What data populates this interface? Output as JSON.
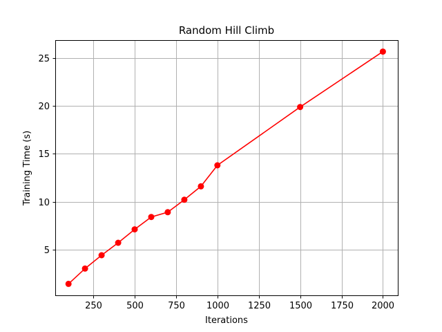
{
  "chart_data": {
    "type": "line",
    "title": "Random Hill Climb",
    "xlabel": "Iterations",
    "ylabel": "Training Time (s)",
    "xlim": [
      20,
      2090
    ],
    "ylim": [
      0.2,
      26.9
    ],
    "x_ticks": [
      250,
      500,
      750,
      1000,
      1250,
      1500,
      1750,
      2000
    ],
    "y_ticks": [
      5,
      10,
      15,
      20,
      25
    ],
    "grid": true,
    "color": "#ff0000",
    "marker": "circle",
    "series": [
      {
        "x": [
          100,
          200,
          300,
          400,
          500,
          600,
          700,
          800,
          900,
          1000,
          1500,
          2000
        ],
        "y": [
          1.4,
          3.0,
          4.4,
          5.7,
          7.1,
          8.4,
          8.9,
          10.2,
          11.6,
          13.8,
          19.9,
          25.7
        ]
      }
    ]
  }
}
